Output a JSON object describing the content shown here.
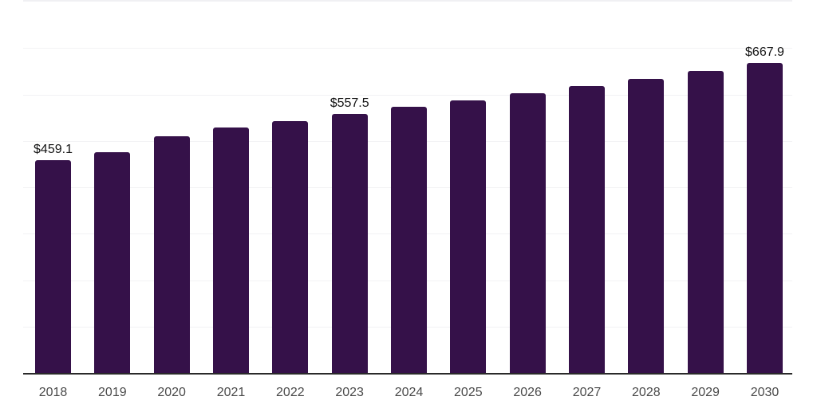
{
  "chart_data": {
    "type": "bar",
    "title": "",
    "xlabel": "",
    "ylabel": "",
    "categories": [
      "2018",
      "2019",
      "2020",
      "2021",
      "2022",
      "2023",
      "2024",
      "2025",
      "2026",
      "2027",
      "2028",
      "2029",
      "2030"
    ],
    "values": [
      459.1,
      475.0,
      510.2,
      528.0,
      542.5,
      557.5,
      574.0,
      588.0,
      603.0,
      618.0,
      634.2,
      650.7,
      667.9
    ],
    "data_labels": {
      "2018": "$459.1",
      "2023": "$557.5",
      "2030": "$667.9"
    },
    "ylim": [
      0,
      800
    ],
    "grid": {
      "horizontal": true,
      "interval": 100,
      "vertical": false
    },
    "legend": "none",
    "y_axis_ticks_visible": false,
    "colors": {
      "bar": "#351149",
      "axis_line": "#2a2a2a",
      "gridline": "#f2f2f4",
      "top_border": "#f0f0f3",
      "tick_label": "#4b4b4b",
      "data_label": "#131313",
      "background": "#ffffff"
    }
  }
}
